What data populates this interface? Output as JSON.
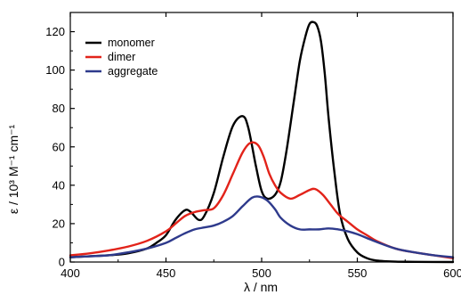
{
  "chart_data": {
    "type": "line",
    "title": "",
    "xlabel": "λ / nm",
    "ylabel": "ε / 10³ M⁻¹ cm⁻¹",
    "xlim": [
      400,
      600
    ],
    "ylim": [
      0,
      130
    ],
    "x_ticks": [
      400,
      450,
      500,
      550,
      600
    ],
    "y_ticks": [
      0,
      20,
      40,
      60,
      80,
      100,
      120
    ],
    "x_tick_labels": [
      "400",
      "450",
      "500",
      "550",
      "600"
    ],
    "y_tick_labels": [
      "0",
      "20",
      "40",
      "60",
      "80",
      "100",
      "120"
    ],
    "grid": false,
    "legend_position": "top-left",
    "series": [
      {
        "name": "monomer",
        "color": "#000000",
        "x": [
          400,
          410,
          420,
          430,
          440,
          445,
          450,
          455,
          460,
          463,
          467,
          470,
          475,
          480,
          485,
          490,
          493,
          497,
          500,
          503,
          507,
          510,
          513,
          517,
          520,
          523,
          525,
          527,
          529,
          531,
          533,
          535,
          538,
          541,
          545,
          550,
          555,
          560,
          570,
          580,
          600
        ],
        "y": [
          2.5,
          3,
          3.5,
          4.5,
          7,
          10,
          14,
          22,
          27,
          26,
          22,
          24,
          36,
          55,
          71,
          76,
          70,
          50,
          37,
          33,
          35,
          42,
          58,
          85,
          105,
          118,
          124,
          125,
          123,
          115,
          98,
          75,
          47,
          25,
          12,
          5,
          2,
          0.8,
          0.2,
          0.1,
          0
        ]
      },
      {
        "name": "dimer",
        "color": "#e2231a",
        "x": [
          400,
          410,
          420,
          430,
          440,
          450,
          455,
          460,
          465,
          470,
          475,
          480,
          485,
          490,
          494,
          498,
          501,
          504,
          507,
          510,
          515,
          520,
          525,
          528,
          532,
          536,
          540,
          545,
          550,
          555,
          560,
          570,
          580,
          590,
          600
        ],
        "y": [
          3.5,
          4.5,
          6,
          8,
          11,
          16,
          20,
          24,
          26,
          27,
          28,
          35,
          46,
          57,
          62,
          61,
          55,
          46,
          40,
          36,
          33,
          35,
          37.5,
          38,
          35,
          30,
          25,
          21,
          17,
          14,
          11,
          7,
          5,
          3.5,
          2
        ]
      },
      {
        "name": "aggregate",
        "color": "#2e3a8c",
        "x": [
          400,
          410,
          420,
          430,
          440,
          450,
          455,
          460,
          465,
          470,
          475,
          480,
          485,
          490,
          495,
          499,
          503,
          507,
          510,
          515,
          520,
          525,
          530,
          535,
          540,
          545,
          550,
          555,
          560,
          570,
          580,
          590,
          600
        ],
        "y": [
          2.5,
          3,
          3.5,
          5,
          7,
          10,
          12.5,
          15,
          17,
          18,
          19,
          21,
          24,
          29,
          33.5,
          34,
          32,
          27.5,
          23,
          19,
          17,
          17,
          17,
          17.5,
          17,
          16,
          14.5,
          12.5,
          10.5,
          7,
          5,
          3.5,
          2.5
        ]
      }
    ]
  }
}
